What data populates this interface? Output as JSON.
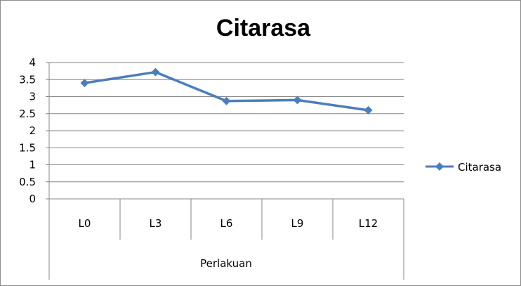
{
  "chart_data": {
    "type": "line",
    "title": "Citarasa",
    "categories": [
      "L0",
      "L3",
      "L6",
      "L9",
      "L12"
    ],
    "xlabel": "Perlakuan",
    "ylabel": "",
    "ylim": [
      0,
      4
    ],
    "yticks": [
      "0",
      "0.5",
      "1",
      "1.5",
      "2",
      "2.5",
      "3",
      "3.5",
      "4"
    ],
    "series": [
      {
        "name": "Citarasa",
        "values": [
          3.4,
          3.72,
          2.87,
          2.9,
          2.6
        ],
        "color": "#4a7ebb",
        "marker": "diamond"
      }
    ],
    "grid": "horizontal",
    "legend": "right"
  }
}
